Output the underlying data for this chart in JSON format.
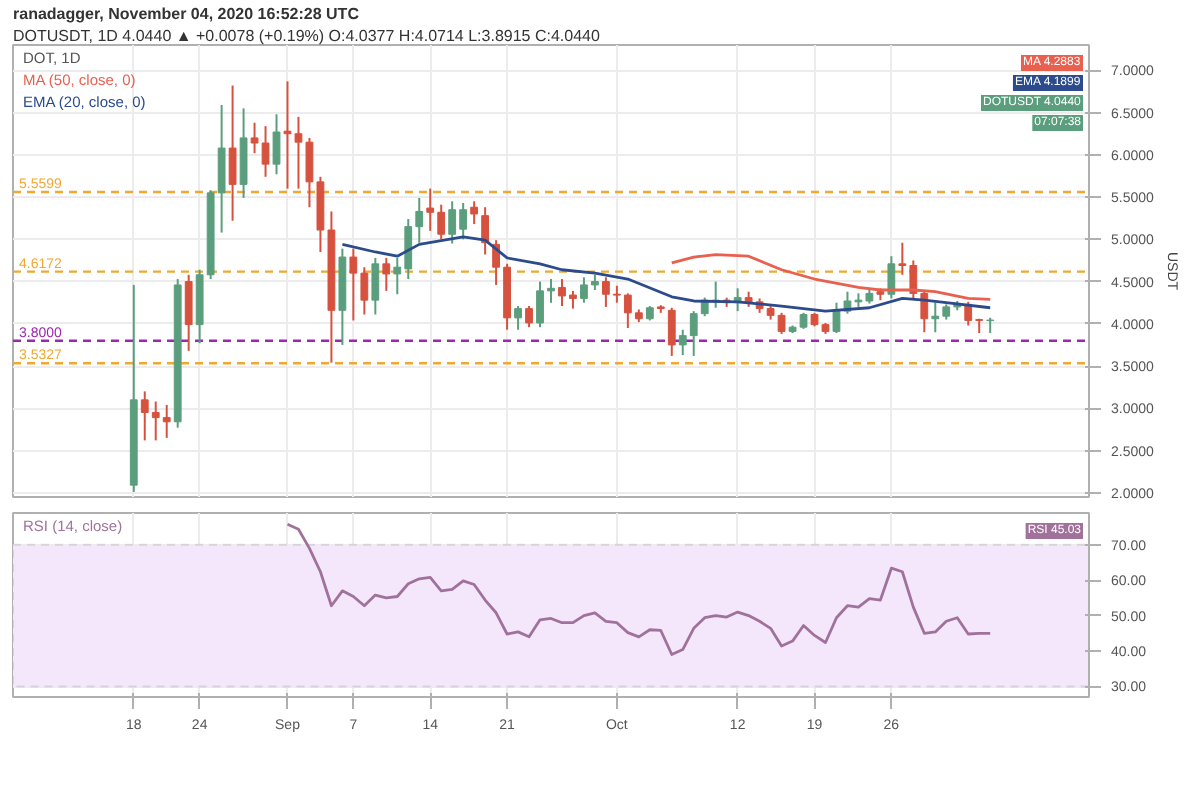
{
  "chart_data": [
    {
      "type": "candlestick",
      "title": "ranadagger, November 04, 2020 16:52:28 UTC",
      "subtitle": "DOTUSDT, 1D 4.0440 ▲ +0.0078 (+0.19%) O:4.0377 H:4.0714 L:3.8915 C:4.0440",
      "legend_title": "DOT, 1D",
      "annotations": [
        "MA 4.2883",
        "EMA 4.1899",
        "DOTUSDT 4.0440",
        "07:07:38"
      ],
      "x": [
        "2020-08-18",
        "2020-08-19",
        "2020-08-20",
        "2020-08-21",
        "2020-08-22",
        "2020-08-23",
        "2020-08-24",
        "2020-08-25",
        "2020-08-26",
        "2020-08-27",
        "2020-08-28",
        "2020-08-29",
        "2020-08-30",
        "2020-08-31",
        "2020-09-01",
        "2020-09-02",
        "2020-09-03",
        "2020-09-04",
        "2020-09-05",
        "2020-09-06",
        "2020-09-07",
        "2020-09-08",
        "2020-09-09",
        "2020-09-10",
        "2020-09-11",
        "2020-09-12",
        "2020-09-13",
        "2020-09-14",
        "2020-09-15",
        "2020-09-16",
        "2020-09-17",
        "2020-09-18",
        "2020-09-19",
        "2020-09-20",
        "2020-09-21",
        "2020-09-22",
        "2020-09-23",
        "2020-09-24",
        "2020-09-25",
        "2020-09-26",
        "2020-09-27",
        "2020-09-28",
        "2020-09-29",
        "2020-09-30",
        "2020-10-01",
        "2020-10-02",
        "2020-10-03",
        "2020-10-04",
        "2020-10-05",
        "2020-10-06",
        "2020-10-07",
        "2020-10-08",
        "2020-10-09",
        "2020-10-10",
        "2020-10-11",
        "2020-10-12",
        "2020-10-13",
        "2020-10-14",
        "2020-10-15",
        "2020-10-16",
        "2020-10-17",
        "2020-10-18",
        "2020-10-19",
        "2020-10-20",
        "2020-10-21",
        "2020-10-22",
        "2020-10-23",
        "2020-10-24",
        "2020-10-25",
        "2020-10-26",
        "2020-10-27",
        "2020-10-28",
        "2020-10-29",
        "2020-10-30",
        "2020-10-31",
        "2020-11-01",
        "2020-11-02",
        "2020-11-03",
        "2020-11-04"
      ],
      "ohlc": [
        [
          2.09,
          4.46,
          2.01,
          3.1
        ],
        [
          3.1,
          3.2,
          2.62,
          2.95
        ],
        [
          2.95,
          3.08,
          2.62,
          2.89
        ],
        [
          2.89,
          3.04,
          2.65,
          2.84
        ],
        [
          2.84,
          4.53,
          2.77,
          4.46
        ],
        [
          4.5,
          4.58,
          3.68,
          3.99
        ],
        [
          3.99,
          4.64,
          3.77,
          4.58
        ],
        [
          4.58,
          5.58,
          4.53,
          5.55
        ],
        [
          5.55,
          6.59,
          5.08,
          6.08
        ],
        [
          6.08,
          6.82,
          5.22,
          5.65
        ],
        [
          5.65,
          6.55,
          5.49,
          6.2
        ],
        [
          6.2,
          6.38,
          6.02,
          6.14
        ],
        [
          6.14,
          6.34,
          5.74,
          5.89
        ],
        [
          5.89,
          6.48,
          5.77,
          6.27
        ],
        [
          6.28,
          6.87,
          5.6,
          6.25
        ],
        [
          6.25,
          6.45,
          5.6,
          6.15
        ],
        [
          6.15,
          6.2,
          5.38,
          5.68
        ],
        [
          5.68,
          5.74,
          4.85,
          5.11
        ],
        [
          5.11,
          5.33,
          3.54,
          4.16
        ],
        [
          4.16,
          4.89,
          3.75,
          4.79
        ],
        [
          4.79,
          4.89,
          4.04,
          4.6
        ],
        [
          4.6,
          4.67,
          4.11,
          4.28
        ],
        [
          4.28,
          4.78,
          4.11,
          4.71
        ],
        [
          4.71,
          4.78,
          4.39,
          4.59
        ],
        [
          4.59,
          4.78,
          4.35,
          4.67
        ],
        [
          4.65,
          5.24,
          4.53,
          5.15
        ],
        [
          5.15,
          5.49,
          4.96,
          5.33
        ],
        [
          5.37,
          5.6,
          5.1,
          5.32
        ],
        [
          5.32,
          5.41,
          5.0,
          5.06
        ],
        [
          5.06,
          5.45,
          4.95,
          5.35
        ],
        [
          5.12,
          5.43,
          5.0,
          5.35
        ],
        [
          5.38,
          5.45,
          5.18,
          5.3
        ],
        [
          5.28,
          5.38,
          4.82,
          4.96
        ],
        [
          4.94,
          4.99,
          4.46,
          4.67
        ],
        [
          4.67,
          4.71,
          3.93,
          4.07
        ],
        [
          4.07,
          4.21,
          3.93,
          4.18
        ],
        [
          4.18,
          4.21,
          3.96,
          4.01
        ],
        [
          4.01,
          4.5,
          3.96,
          4.39
        ],
        [
          4.39,
          4.53,
          4.25,
          4.42
        ],
        [
          4.43,
          4.53,
          4.21,
          4.33
        ],
        [
          4.34,
          4.39,
          4.18,
          4.3
        ],
        [
          4.3,
          4.55,
          4.25,
          4.46
        ],
        [
          4.46,
          4.58,
          4.4,
          4.5
        ],
        [
          4.5,
          4.55,
          4.2,
          4.35
        ],
        [
          4.35,
          4.45,
          4.25,
          4.34
        ],
        [
          4.34,
          4.36,
          3.95,
          4.13
        ],
        [
          4.13,
          4.17,
          4.02,
          4.06
        ],
        [
          4.06,
          4.21,
          4.04,
          4.19
        ],
        [
          4.2,
          4.22,
          4.13,
          4.18
        ],
        [
          4.16,
          4.19,
          3.62,
          3.75
        ],
        [
          3.75,
          3.93,
          3.63,
          3.86
        ],
        [
          3.86,
          4.15,
          3.62,
          4.12
        ],
        [
          4.12,
          4.31,
          4.09,
          4.28
        ],
        [
          4.26,
          4.5,
          4.19,
          4.28
        ],
        [
          4.28,
          4.31,
          4.2,
          4.25
        ],
        [
          4.25,
          4.42,
          4.15,
          4.31
        ],
        [
          4.31,
          4.38,
          4.2,
          4.25
        ],
        [
          4.26,
          4.3,
          4.13,
          4.18
        ],
        [
          4.18,
          4.22,
          4.05,
          4.1
        ],
        [
          4.1,
          4.13,
          3.88,
          3.91
        ],
        [
          3.91,
          3.98,
          3.89,
          3.96
        ],
        [
          3.96,
          4.13,
          3.94,
          4.11
        ],
        [
          4.11,
          4.13,
          3.97,
          3.99
        ],
        [
          3.99,
          4.01,
          3.88,
          3.91
        ],
        [
          3.91,
          4.25,
          3.89,
          4.15
        ],
        [
          4.15,
          4.38,
          4.12,
          4.27
        ],
        [
          4.26,
          4.36,
          4.2,
          4.28
        ],
        [
          4.27,
          4.42,
          4.24,
          4.36
        ],
        [
          4.38,
          4.42,
          4.28,
          4.35
        ],
        [
          4.35,
          4.8,
          4.3,
          4.71
        ],
        [
          4.71,
          4.96,
          4.58,
          4.69
        ],
        [
          4.69,
          4.75,
          4.3,
          4.36
        ],
        [
          4.36,
          4.4,
          3.9,
          4.06
        ],
        [
          4.06,
          4.25,
          3.9,
          4.09
        ],
        [
          4.09,
          4.23,
          4.05,
          4.2
        ],
        [
          4.2,
          4.27,
          4.16,
          4.23
        ],
        [
          4.23,
          4.26,
          3.98,
          4.04
        ],
        [
          4.05,
          4.06,
          3.89,
          4.04
        ],
        [
          4.0377,
          4.0714,
          3.8915,
          4.044
        ]
      ],
      "colors": [
        "#5b9e7d",
        "#d6523f",
        "#d6523f",
        "#d6523f",
        "#5b9e7d",
        "#d6523f",
        "#5b9e7d",
        "#5b9e7d",
        "#5b9e7d",
        "#d6523f",
        "#5b9e7d",
        "#d6523f",
        "#d6523f",
        "#5b9e7d",
        "#d6523f",
        "#d6523f",
        "#d6523f",
        "#d6523f",
        "#d6523f",
        "#5b9e7d",
        "#d6523f",
        "#d6523f",
        "#5b9e7d",
        "#d6523f",
        "#5b9e7d",
        "#5b9e7d",
        "#5b9e7d",
        "#d6523f",
        "#d6523f",
        "#5b9e7d",
        "#5b9e7d",
        "#d6523f",
        "#d6523f",
        "#d6523f",
        "#d6523f",
        "#5b9e7d",
        "#d6523f",
        "#5b9e7d",
        "#5b9e7d",
        "#d6523f",
        "#d6523f",
        "#5b9e7d",
        "#5b9e7d",
        "#d6523f",
        "#d6523f",
        "#d6523f",
        "#d6523f",
        "#5b9e7d",
        "#d6523f",
        "#d6523f",
        "#5b9e7d",
        "#5b9e7d",
        "#5b9e7d",
        "#5b9e7d",
        "#d6523f",
        "#5b9e7d",
        "#d6523f",
        "#d6523f",
        "#d6523f",
        "#d6523f",
        "#5b9e7d",
        "#5b9e7d",
        "#d6523f",
        "#d6523f",
        "#5b9e7d",
        "#5b9e7d",
        "#5b9e7d",
        "#5b9e7d",
        "#d6523f",
        "#5b9e7d",
        "#d6523f",
        "#d6523f",
        "#d6523f",
        "#5b9e7d",
        "#5b9e7d",
        "#5b9e7d",
        "#d6523f",
        "#d6523f",
        "#5b9e7d"
      ],
      "series": [
        {
          "name": "MA (50, close, 0)",
          "type": "line",
          "color": "#e8604f",
          "x": [
            "2020-10-06",
            "2020-10-08",
            "2020-10-10",
            "2020-10-13",
            "2020-10-16",
            "2020-10-19",
            "2020-10-23",
            "2020-10-25",
            "2020-10-28",
            "2020-10-30",
            "2020-11-02",
            "2020-11-04"
          ],
          "values": [
            4.72,
            4.79,
            4.82,
            4.8,
            4.64,
            4.53,
            4.43,
            4.4,
            4.4,
            4.38,
            4.3,
            4.29
          ]
        },
        {
          "name": "EMA (20, close, 0)",
          "type": "line",
          "color": "#2b4b8c",
          "x": [
            "2020-09-06",
            "2020-09-09",
            "2020-09-11",
            "2020-09-13",
            "2020-09-17",
            "2020-09-19",
            "2020-09-21",
            "2020-09-24",
            "2020-09-26",
            "2020-09-29",
            "2020-10-02",
            "2020-10-06",
            "2020-10-08",
            "2020-10-12",
            "2020-10-16",
            "2020-10-20",
            "2020-10-24",
            "2020-10-27",
            "2020-10-29",
            "2020-10-31",
            "2020-11-04"
          ],
          "values": [
            4.94,
            4.85,
            4.8,
            4.94,
            5.03,
            4.99,
            4.78,
            4.71,
            4.64,
            4.6,
            4.53,
            4.32,
            4.27,
            4.26,
            4.21,
            4.15,
            4.19,
            4.3,
            4.28,
            4.25,
            4.19
          ]
        }
      ],
      "ylabel": "USDT",
      "xlim": [
        "2020-08-07",
        "2020-11-13"
      ],
      "ylim": [
        1.95,
        7.3
      ],
      "xticks": [
        {
          "value": "2020-08-18",
          "label": null
        },
        {
          "value": "2020-08-24",
          "label": null
        },
        {
          "value": "2020-09-01",
          "label": null
        },
        {
          "value": "2020-09-07",
          "label": null
        },
        {
          "value": "2020-09-14",
          "label": null
        },
        {
          "value": "2020-09-21",
          "label": null
        },
        {
          "value": "2020-10-01",
          "label": null
        },
        {
          "value": "2020-10-12",
          "label": null
        },
        {
          "value": "2020-10-19",
          "label": null
        },
        {
          "value": "2020-10-26",
          "label": null
        }
      ],
      "yticks": [
        {
          "value": 2,
          "label": "2.0000"
        },
        {
          "value": 2.5,
          "label": "2.5000"
        },
        {
          "value": 3,
          "label": "3.0000"
        },
        {
          "value": 3.5,
          "label": "3.5000"
        },
        {
          "value": 4,
          "label": "4.0000"
        },
        {
          "value": 4.5,
          "label": "4.5000"
        },
        {
          "value": 5,
          "label": "5.0000"
        },
        {
          "value": 5.5,
          "label": "5.5000"
        },
        {
          "value": 6,
          "label": "6.0000"
        },
        {
          "value": 6.5,
          "label": "6.5000"
        },
        {
          "value": 7,
          "label": "7.0000"
        }
      ],
      "ref_lines": [
        {
          "axis": "y",
          "value": 5.5599,
          "label": "5.5599",
          "color": "#f0a830",
          "line_style": "dashed"
        },
        {
          "axis": "y",
          "value": 4.6172,
          "label": "4.6172",
          "color": "#f0a830",
          "line_style": "dashed"
        },
        {
          "axis": "y",
          "value": 3.8,
          "label": "3.8000",
          "color": "#9c27b0",
          "line_style": "dashed"
        },
        {
          "axis": "y",
          "value": 3.5327,
          "label": "3.5327",
          "color": "#f0a830",
          "line_style": "dashed"
        }
      ],
      "grid": true,
      "legend": "top left",
      "tick_labels": "y"
    },
    {
      "type": "line",
      "annotations": [
        "RSI 45.03"
      ],
      "x": [
        "2020-09-01",
        "2020-09-02",
        "2020-09-03",
        "2020-09-04",
        "2020-09-05",
        "2020-09-06",
        "2020-09-07",
        "2020-09-08",
        "2020-09-09",
        "2020-09-10",
        "2020-09-11",
        "2020-09-12",
        "2020-09-13",
        "2020-09-14",
        "2020-09-15",
        "2020-09-16",
        "2020-09-17",
        "2020-09-18",
        "2020-09-19",
        "2020-09-20",
        "2020-09-21",
        "2020-09-22",
        "2020-09-23",
        "2020-09-24",
        "2020-09-25",
        "2020-09-26",
        "2020-09-27",
        "2020-09-28",
        "2020-09-29",
        "2020-09-30",
        "2020-10-01",
        "2020-10-02",
        "2020-10-03",
        "2020-10-04",
        "2020-10-05",
        "2020-10-06",
        "2020-10-07",
        "2020-10-08",
        "2020-10-09",
        "2020-10-10",
        "2020-10-11",
        "2020-10-12",
        "2020-10-13",
        "2020-10-14",
        "2020-10-15",
        "2020-10-16",
        "2020-10-17",
        "2020-10-18",
        "2020-10-19",
        "2020-10-20",
        "2020-10-21",
        "2020-10-22",
        "2020-10-23",
        "2020-10-24",
        "2020-10-25",
        "2020-10-26",
        "2020-10-27",
        "2020-10-28",
        "2020-10-29",
        "2020-10-30",
        "2020-10-31",
        "2020-11-01",
        "2020-11-02",
        "2020-11-03",
        "2020-11-04"
      ],
      "series": [
        {
          "name": "RSI (14, close)",
          "color": "#a0729b",
          "values": [
            75.8,
            74.4,
            69.0,
            62.4,
            52.8,
            57.0,
            55.4,
            52.8,
            55.8,
            55.0,
            55.4,
            59.0,
            60.4,
            60.8,
            57.0,
            57.4,
            59.8,
            58.8,
            54.4,
            50.8,
            44.8,
            45.4,
            44.0,
            48.8,
            49.2,
            48.0,
            48.0,
            50.0,
            50.8,
            48.4,
            48.0,
            45.2,
            44.0,
            46.0,
            45.8,
            39.0,
            40.4,
            46.4,
            49.4,
            50.0,
            49.6,
            51.0,
            50.0,
            48.4,
            46.4,
            41.4,
            42.8,
            47.2,
            44.4,
            42.4,
            49.4,
            52.8,
            52.4,
            54.8,
            54.4,
            63.4,
            62.4,
            52.4,
            45.0,
            45.4,
            48.4,
            49.4,
            44.8,
            45.0,
            45.0
          ]
        }
      ],
      "xlim": [
        "2020-08-07",
        "2020-11-13"
      ],
      "ylim": [
        27,
        79
      ],
      "xticks": [
        {
          "value": "2020-08-18",
          "label": "18"
        },
        {
          "value": "2020-08-24",
          "label": "24"
        },
        {
          "value": "2020-09-01",
          "label": "Sep"
        },
        {
          "value": "2020-09-07",
          "label": "7"
        },
        {
          "value": "2020-09-14",
          "label": "14"
        },
        {
          "value": "2020-09-21",
          "label": "21"
        },
        {
          "value": "2020-10-01",
          "label": "Oct"
        },
        {
          "value": "2020-10-12",
          "label": "12"
        },
        {
          "value": "2020-10-19",
          "label": "19"
        },
        {
          "value": "2020-10-26",
          "label": "26"
        }
      ],
      "yticks": [
        {
          "value": 30,
          "label": "30.00"
        },
        {
          "value": 40,
          "label": "40.00"
        },
        {
          "value": 50,
          "label": "50.00"
        },
        {
          "value": 60,
          "label": "60.00"
        },
        {
          "value": 70,
          "label": "70.00"
        }
      ],
      "bands": [
        {
          "axis": "y",
          "from": 30,
          "to": 70,
          "color": "#f4e6fb"
        }
      ],
      "grid": true,
      "legend": "top left"
    }
  ]
}
